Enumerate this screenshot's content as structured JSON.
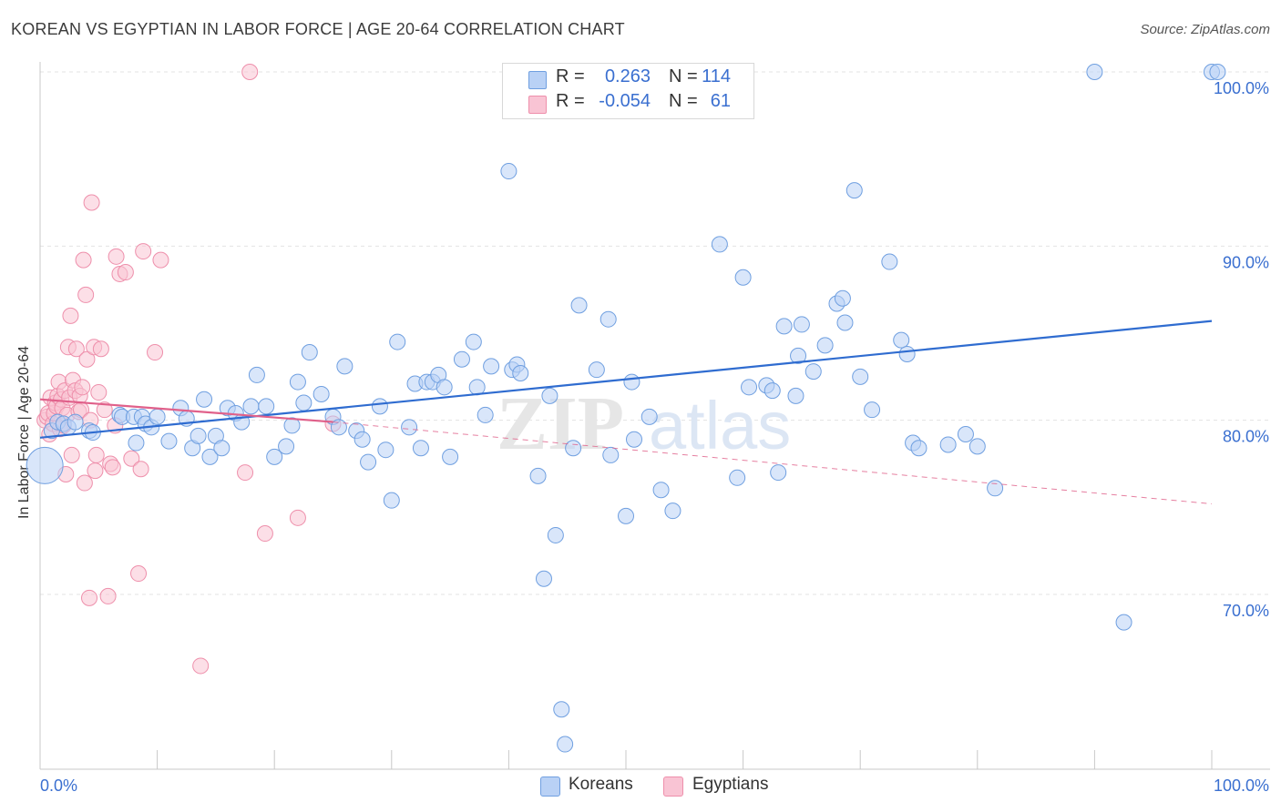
{
  "header": {
    "title": "KOREAN VS EGYPTIAN IN LABOR FORCE | AGE 20-64 CORRELATION CHART",
    "source": "Source: ZipAtlas.com"
  },
  "legend": {
    "rows": [
      {
        "r_label": "R =",
        "r_value": "0.263",
        "n_label": "N =",
        "n_value": "114"
      },
      {
        "r_label": "R =",
        "r_value": "-0.054",
        "n_label": "N =",
        "n_value": "61"
      }
    ]
  },
  "bottom_legend": {
    "series_a": "Koreans",
    "series_b": "Egyptians"
  },
  "watermark": {
    "part1": "ZIP",
    "part2": "atlas"
  },
  "colors": {
    "koreans_fill": "#b9d1f5",
    "koreans_stroke": "#6f9fe0",
    "koreans_line": "#2f6cd0",
    "egyptians_fill": "#f9c4d4",
    "egyptians_stroke": "#ee8fab",
    "egyptians_line": "#e0608a",
    "tick_label": "#3a6fd0",
    "grid": "#e3e3e3"
  },
  "chart_data": {
    "type": "scatter",
    "title": "KOREAN VS EGYPTIAN IN LABOR FORCE | AGE 20-64 CORRELATION CHART",
    "xlabel": "",
    "ylabel": "In Labor Force | Age 20-64",
    "xlim": [
      0,
      100
    ],
    "ylim": [
      60.5,
      101.5
    ],
    "x_tick_labels": [
      "0.0%",
      "100.0%"
    ],
    "y_ticks": [
      70,
      80,
      90,
      100
    ],
    "y_tick_labels": [
      "70.0%",
      "80.0%",
      "90.0%",
      "100.0%"
    ],
    "grid": "horizontal dashed",
    "legend_position": "top-center",
    "series": [
      {
        "name": "Koreans",
        "r": 0.263,
        "n": 114,
        "trend": {
          "x": [
            0,
            100
          ],
          "y": [
            79.0,
            85.7
          ]
        },
        "points": [
          [
            0.4,
            77.4
          ],
          [
            1.0,
            79.4
          ],
          [
            1.5,
            79.9
          ],
          [
            2.0,
            79.8
          ],
          [
            2.4,
            79.6
          ],
          [
            3.0,
            79.9
          ],
          [
            4.2,
            79.4
          ],
          [
            4.5,
            79.3
          ],
          [
            6.8,
            80.3
          ],
          [
            7.0,
            80.2
          ],
          [
            8.0,
            80.2
          ],
          [
            8.7,
            80.2
          ],
          [
            8.2,
            78.7
          ],
          [
            9.0,
            79.8
          ],
          [
            9.5,
            79.6
          ],
          [
            10.0,
            80.2
          ],
          [
            11.0,
            78.8
          ],
          [
            12.0,
            80.7
          ],
          [
            12.5,
            80.1
          ],
          [
            13.0,
            78.4
          ],
          [
            13.5,
            79.1
          ],
          [
            14.0,
            81.2
          ],
          [
            14.5,
            77.9
          ],
          [
            15.0,
            79.1
          ],
          [
            15.5,
            78.4
          ],
          [
            16.0,
            80.7
          ],
          [
            16.7,
            80.4
          ],
          [
            17.2,
            79.9
          ],
          [
            18.0,
            80.8
          ],
          [
            18.5,
            82.6
          ],
          [
            19.3,
            80.8
          ],
          [
            20.0,
            77.9
          ],
          [
            21.0,
            78.5
          ],
          [
            21.5,
            79.7
          ],
          [
            22.0,
            82.2
          ],
          [
            22.5,
            81.0
          ],
          [
            23.0,
            83.9
          ],
          [
            24.0,
            81.5
          ],
          [
            25.0,
            80.2
          ],
          [
            25.5,
            79.6
          ],
          [
            26.0,
            83.1
          ],
          [
            27.0,
            79.4
          ],
          [
            27.5,
            78.9
          ],
          [
            28.0,
            77.6
          ],
          [
            29.0,
            80.8
          ],
          [
            29.5,
            78.3
          ],
          [
            30.0,
            75.4
          ],
          [
            30.5,
            84.5
          ],
          [
            31.5,
            79.6
          ],
          [
            32.0,
            82.1
          ],
          [
            32.5,
            78.4
          ],
          [
            33.0,
            82.2
          ],
          [
            33.5,
            82.2
          ],
          [
            34.0,
            82.6
          ],
          [
            34.5,
            81.9
          ],
          [
            35.0,
            77.9
          ],
          [
            36.0,
            83.5
          ],
          [
            37.0,
            84.5
          ],
          [
            37.3,
            81.9
          ],
          [
            38.0,
            80.3
          ],
          [
            38.5,
            83.1
          ],
          [
            40.0,
            94.3
          ],
          [
            40.3,
            82.9
          ],
          [
            40.7,
            83.2
          ],
          [
            41.0,
            82.7
          ],
          [
            42.5,
            76.8
          ],
          [
            43.0,
            70.9
          ],
          [
            43.5,
            81.4
          ],
          [
            44.0,
            73.4
          ],
          [
            44.5,
            63.4
          ],
          [
            44.8,
            61.4
          ],
          [
            45.5,
            78.4
          ],
          [
            46.0,
            86.6
          ],
          [
            47.5,
            82.9
          ],
          [
            48.5,
            85.8
          ],
          [
            48.7,
            78.0
          ],
          [
            50.0,
            74.5
          ],
          [
            50.5,
            82.2
          ],
          [
            50.7,
            78.9
          ],
          [
            52.0,
            80.2
          ],
          [
            53.0,
            76.0
          ],
          [
            54.0,
            74.8
          ],
          [
            58.0,
            90.1
          ],
          [
            59.5,
            76.7
          ],
          [
            60.0,
            88.2
          ],
          [
            60.5,
            81.9
          ],
          [
            62.0,
            82.0
          ],
          [
            62.5,
            81.7
          ],
          [
            63.0,
            77.0
          ],
          [
            63.5,
            85.4
          ],
          [
            64.5,
            81.4
          ],
          [
            64.7,
            83.7
          ],
          [
            65.0,
            85.5
          ],
          [
            66.0,
            82.8
          ],
          [
            67.0,
            84.3
          ],
          [
            68.0,
            86.7
          ],
          [
            68.5,
            87.0
          ],
          [
            68.7,
            85.6
          ],
          [
            69.5,
            93.2
          ],
          [
            70.0,
            82.5
          ],
          [
            71.0,
            80.6
          ],
          [
            72.5,
            89.1
          ],
          [
            73.5,
            84.6
          ],
          [
            74.0,
            83.8
          ],
          [
            74.5,
            78.7
          ],
          [
            75.0,
            78.4
          ],
          [
            77.5,
            78.6
          ],
          [
            79.0,
            79.2
          ],
          [
            80.0,
            78.5
          ],
          [
            81.5,
            76.1
          ],
          [
            90.0,
            100.0
          ],
          [
            92.5,
            68.4
          ],
          [
            100.0,
            100.0
          ],
          [
            100.5,
            100.0
          ]
        ]
      },
      {
        "name": "Egyptians",
        "r": -0.054,
        "n": 61,
        "trend": {
          "x": [
            0,
            25
          ],
          "y": [
            81.2,
            79.9
          ],
          "dashed_extension": {
            "x": [
              25,
              100
            ],
            "y": [
              79.9,
              75.2
            ]
          }
        },
        "points": [
          [
            0.4,
            80.0
          ],
          [
            0.6,
            80.2
          ],
          [
            0.7,
            80.4
          ],
          [
            0.8,
            79.2
          ],
          [
            0.9,
            81.3
          ],
          [
            1.1,
            79.8
          ],
          [
            1.2,
            80.4
          ],
          [
            1.3,
            81.0
          ],
          [
            1.4,
            80.8
          ],
          [
            1.5,
            81.4
          ],
          [
            1.6,
            82.2
          ],
          [
            1.7,
            79.5
          ],
          [
            1.8,
            81.2
          ],
          [
            1.9,
            80.7
          ],
          [
            2.0,
            79.7
          ],
          [
            2.1,
            81.7
          ],
          [
            2.2,
            76.9
          ],
          [
            2.3,
            80.3
          ],
          [
            2.4,
            84.2
          ],
          [
            2.5,
            81.3
          ],
          [
            2.6,
            86.0
          ],
          [
            2.7,
            78.0
          ],
          [
            2.8,
            82.3
          ],
          [
            3.0,
            81.7
          ],
          [
            3.1,
            84.1
          ],
          [
            3.3,
            80.5
          ],
          [
            3.4,
            81.4
          ],
          [
            3.5,
            80.6
          ],
          [
            3.6,
            81.9
          ],
          [
            3.7,
            89.2
          ],
          [
            3.8,
            76.4
          ],
          [
            3.9,
            87.2
          ],
          [
            4.0,
            83.5
          ],
          [
            4.2,
            69.8
          ],
          [
            4.3,
            80.0
          ],
          [
            4.4,
            92.5
          ],
          [
            4.6,
            84.2
          ],
          [
            4.7,
            77.1
          ],
          [
            4.8,
            78.0
          ],
          [
            5.0,
            81.6
          ],
          [
            5.2,
            84.1
          ],
          [
            5.5,
            80.6
          ],
          [
            5.8,
            69.9
          ],
          [
            6.0,
            77.5
          ],
          [
            6.2,
            77.3
          ],
          [
            6.4,
            79.7
          ],
          [
            6.5,
            89.4
          ],
          [
            6.8,
            88.4
          ],
          [
            7.3,
            88.5
          ],
          [
            7.8,
            77.8
          ],
          [
            8.4,
            71.2
          ],
          [
            8.6,
            77.2
          ],
          [
            8.8,
            89.7
          ],
          [
            9.8,
            83.9
          ],
          [
            10.3,
            89.2
          ],
          [
            13.7,
            65.9
          ],
          [
            17.5,
            77.0
          ],
          [
            17.9,
            100.0
          ],
          [
            19.2,
            73.5
          ],
          [
            22.0,
            74.4
          ],
          [
            25.0,
            79.8
          ]
        ]
      }
    ]
  }
}
